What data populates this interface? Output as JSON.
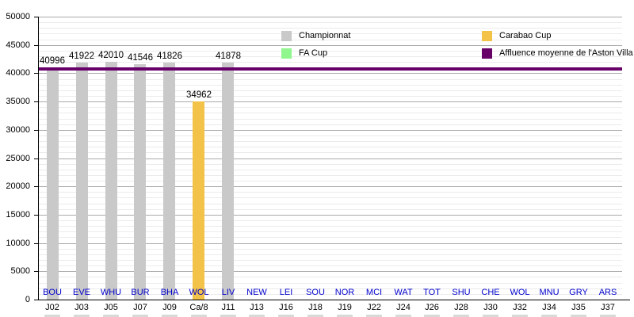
{
  "chart_data": {
    "type": "bar",
    "title": "",
    "xlabel": "",
    "ylabel": "",
    "ylim": [
      0,
      50000
    ],
    "ytick_interval": 5000,
    "minor_gridline_interval": 1000,
    "grid": "on",
    "ytick_labels": [
      "0",
      "5000",
      "10000",
      "15000",
      "20000",
      "25000",
      "30000",
      "35000",
      "40000",
      "45000",
      "50000"
    ],
    "legend_position": "top",
    "legend": [
      {
        "label": "Championnat",
        "color": "#C9C9C9"
      },
      {
        "label": "FA Cup",
        "color": "#90F78F"
      },
      {
        "label": "Carabao Cup",
        "color": "#F2C348"
      },
      {
        "label": "Affluence moyenne de l'Aston Villa FC",
        "color": "#670067"
      }
    ],
    "average_line": {
      "label": "Affluence moyenne de l'Aston Villa FC",
      "value": 40700,
      "color": "#670067"
    },
    "colors": {
      "championnat_bar": "#C9C9C9",
      "fa_cup_bar": "#90F78F",
      "carabao_cup_bar": "#F2C348",
      "average_line": "#670067",
      "opponent_label_text": "#0000CC"
    },
    "columns": [
      {
        "opponent": "BOU",
        "matchday": "J02",
        "value": 40996,
        "competition": "Championnat"
      },
      {
        "opponent": "EVE",
        "matchday": "J03",
        "value": 41922,
        "competition": "Championnat"
      },
      {
        "opponent": "WHU",
        "matchday": "J05",
        "value": 42010,
        "competition": "Championnat"
      },
      {
        "opponent": "BUR",
        "matchday": "J07",
        "value": 41546,
        "competition": "Championnat"
      },
      {
        "opponent": "BHA",
        "matchday": "J09",
        "value": 41826,
        "competition": "Championnat"
      },
      {
        "opponent": "WOL",
        "matchday": "Ca/8",
        "value": 34962,
        "competition": "Carabao Cup"
      },
      {
        "opponent": "LIV",
        "matchday": "J11",
        "value": 41878,
        "competition": "Championnat"
      },
      {
        "opponent": "NEW",
        "matchday": "J13",
        "value": null,
        "competition": "Championnat"
      },
      {
        "opponent": "LEI",
        "matchday": "J16",
        "value": null,
        "competition": "Championnat"
      },
      {
        "opponent": "SOU",
        "matchday": "J18",
        "value": null,
        "competition": "Championnat"
      },
      {
        "opponent": "NOR",
        "matchday": "J19",
        "value": null,
        "competition": "Championnat"
      },
      {
        "opponent": "MCI",
        "matchday": "J22",
        "value": null,
        "competition": "Championnat"
      },
      {
        "opponent": "WAT",
        "matchday": "J24",
        "value": null,
        "competition": "Championnat"
      },
      {
        "opponent": "TOT",
        "matchday": "J26",
        "value": null,
        "competition": "Championnat"
      },
      {
        "opponent": "SHU",
        "matchday": "J28",
        "value": null,
        "competition": "Championnat"
      },
      {
        "opponent": "CHE",
        "matchday": "J30",
        "value": null,
        "competition": "Championnat"
      },
      {
        "opponent": "WOL",
        "matchday": "J32",
        "value": null,
        "competition": "Championnat"
      },
      {
        "opponent": "MNU",
        "matchday": "J34",
        "value": null,
        "competition": "Championnat"
      },
      {
        "opponent": "GRY",
        "matchday": "J35",
        "value": null,
        "competition": "Championnat"
      },
      {
        "opponent": "ARS",
        "matchday": "J37",
        "value": null,
        "competition": "Championnat"
      }
    ]
  }
}
